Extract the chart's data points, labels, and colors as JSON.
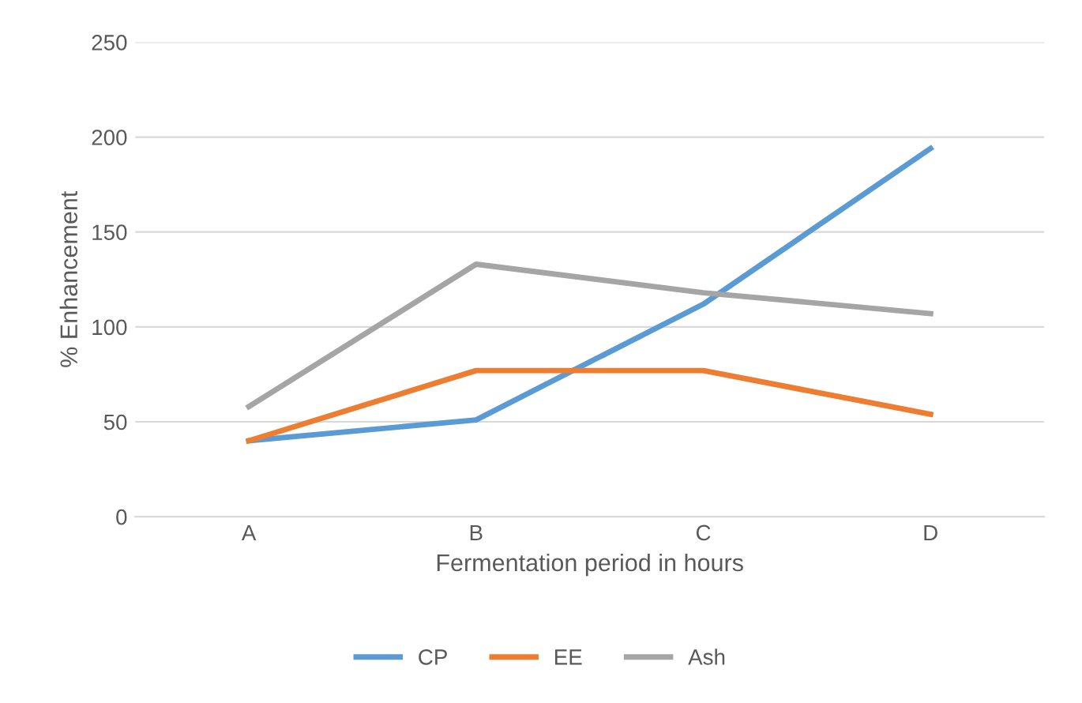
{
  "chart_data": {
    "type": "line",
    "xlabel": "Fermentation period in hours",
    "ylabel": "% Enhancement",
    "categories": [
      "A",
      "B",
      "C",
      "D"
    ],
    "series": [
      {
        "name": "CP",
        "color": "#5b9bd5",
        "values": [
          40,
          51,
          112,
          194
        ]
      },
      {
        "name": "EE",
        "color": "#ed7d31",
        "values": [
          40,
          77,
          77,
          54
        ]
      },
      {
        "name": "Ash",
        "color": "#a5a5a5",
        "values": [
          58,
          133,
          118,
          107
        ]
      }
    ],
    "ylim": [
      0,
      250
    ],
    "yticks": [
      0,
      50,
      100,
      150,
      200,
      250
    ],
    "grid": "y",
    "legend": "bottom",
    "marker": "none",
    "line_style": "solid"
  }
}
